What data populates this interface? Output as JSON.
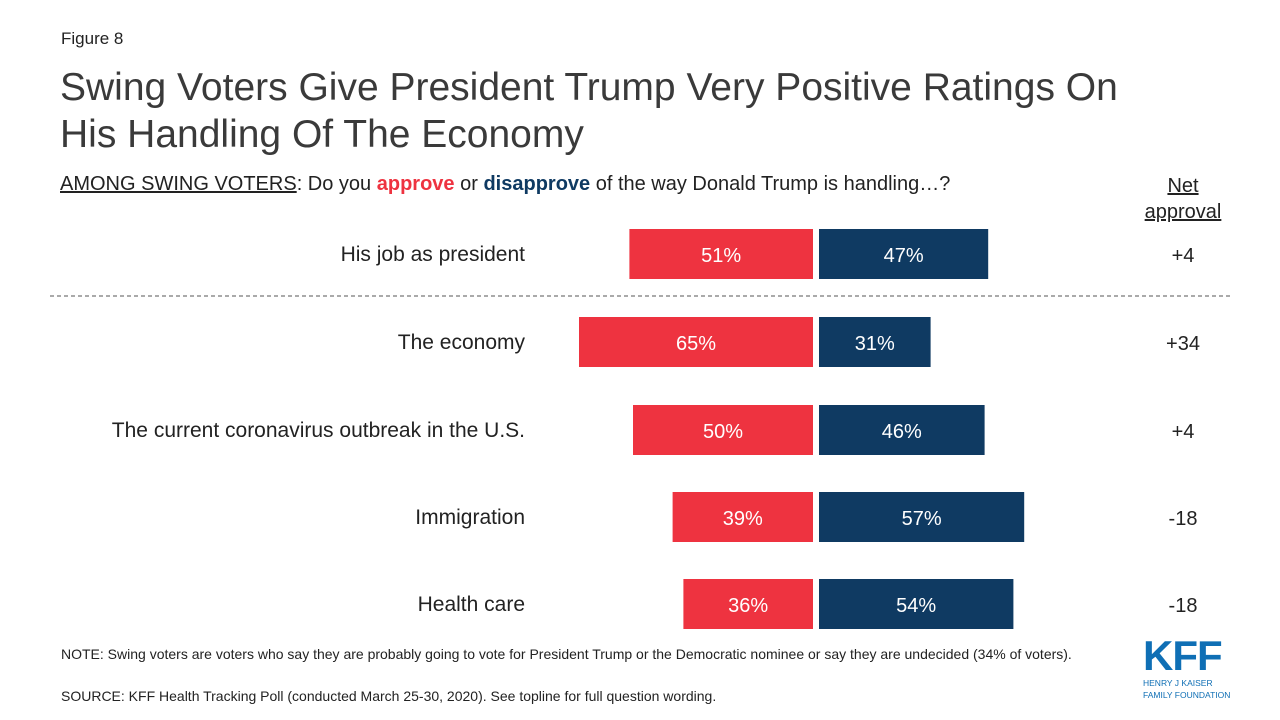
{
  "figure_label": "Figure 8",
  "title": "Swing Voters Give President Trump Very Positive Ratings On His Handling Of The Economy",
  "subtitle": {
    "lead": "AMONG SWING VOTERS",
    "part1": ": Do you ",
    "approve": "approve",
    "part2": " or ",
    "disapprove": "disapprove",
    "part3": " of the way Donald Trump is handling…?"
  },
  "net_header": "Net approval",
  "chart_data": {
    "type": "bar",
    "orientation": "horizontal-diverging",
    "categories": [
      "His job as president",
      "The economy",
      "The current coronavirus outbreak in the U.S.",
      "Immigration",
      "Health care"
    ],
    "series": [
      {
        "name": "approve",
        "values": [
          51,
          65,
          50,
          39,
          36
        ],
        "labels": [
          "51%",
          "65%",
          "50%",
          "39%",
          "36%"
        ],
        "color": "#ee3340"
      },
      {
        "name": "disapprove",
        "values": [
          47,
          31,
          46,
          57,
          54
        ],
        "labels": [
          "47%",
          "31%",
          "46%",
          "57%",
          "54%"
        ],
        "color": "#0f3a62"
      }
    ],
    "net_approval": [
      "+4",
      "+34",
      "+4",
      "-18",
      "-18"
    ],
    "separator_after_first": true
  },
  "note": "NOTE: Swing voters are voters who say they are probably going to vote for President Trump or the Democratic nominee or say they are undecided (34% of voters).",
  "source": "SOURCE: KFF Health Tracking Poll (conducted March 25-30, 2020). See topline for full question wording.",
  "logo": {
    "mark": "KFF",
    "line1": "HENRY J KAISER",
    "line2": "FAMILY FOUNDATION"
  }
}
